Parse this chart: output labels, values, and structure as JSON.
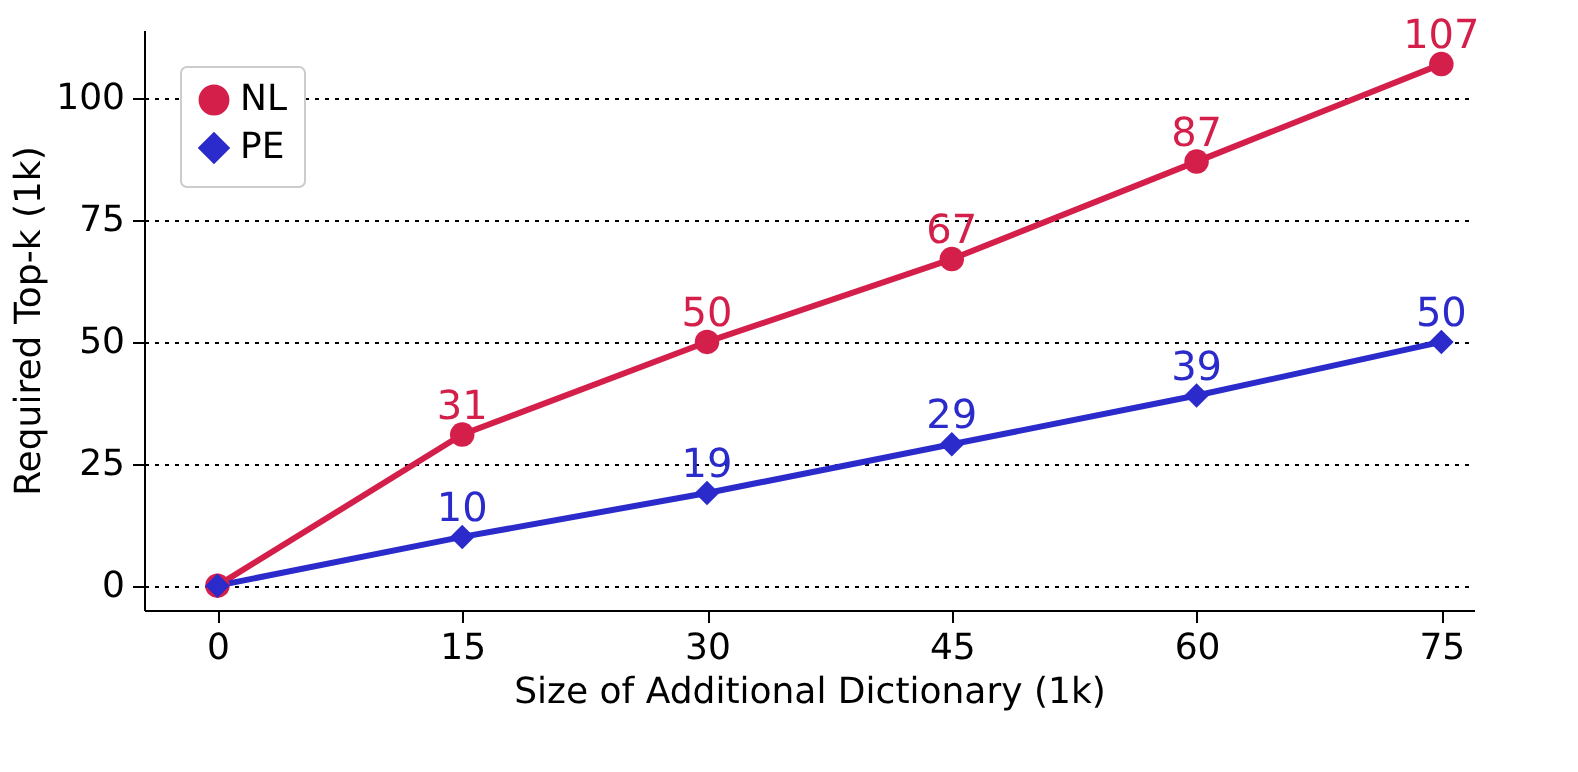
{
  "chart_data": {
    "type": "line",
    "xlabel": "Size of Additional Dictionary (1k)",
    "ylabel": "Required Top-k (1k)",
    "x": [
      0,
      15,
      30,
      45,
      60,
      75
    ],
    "series": [
      {
        "name": "NL",
        "color": "#d41f4a",
        "marker": "circle",
        "values": [
          0,
          31,
          50,
          67,
          87,
          107
        ],
        "value_labels": [
          null,
          "31",
          "50",
          "67",
          "87",
          "107"
        ]
      },
      {
        "name": "PE",
        "color": "#2b2bcc",
        "marker": "diamond",
        "values": [
          0,
          10,
          19,
          29,
          39,
          50
        ],
        "value_labels": [
          null,
          "10",
          "19",
          "29",
          "39",
          "50"
        ]
      }
    ],
    "xlim": [
      -4.5,
      77
    ],
    "xticks": [
      0,
      15,
      30,
      45,
      60,
      75
    ],
    "ylim": [
      -5,
      114
    ],
    "yticks": [
      0,
      25,
      50,
      75,
      100
    ],
    "grid": "y",
    "legend": "top left",
    "line_style": "solid"
  }
}
